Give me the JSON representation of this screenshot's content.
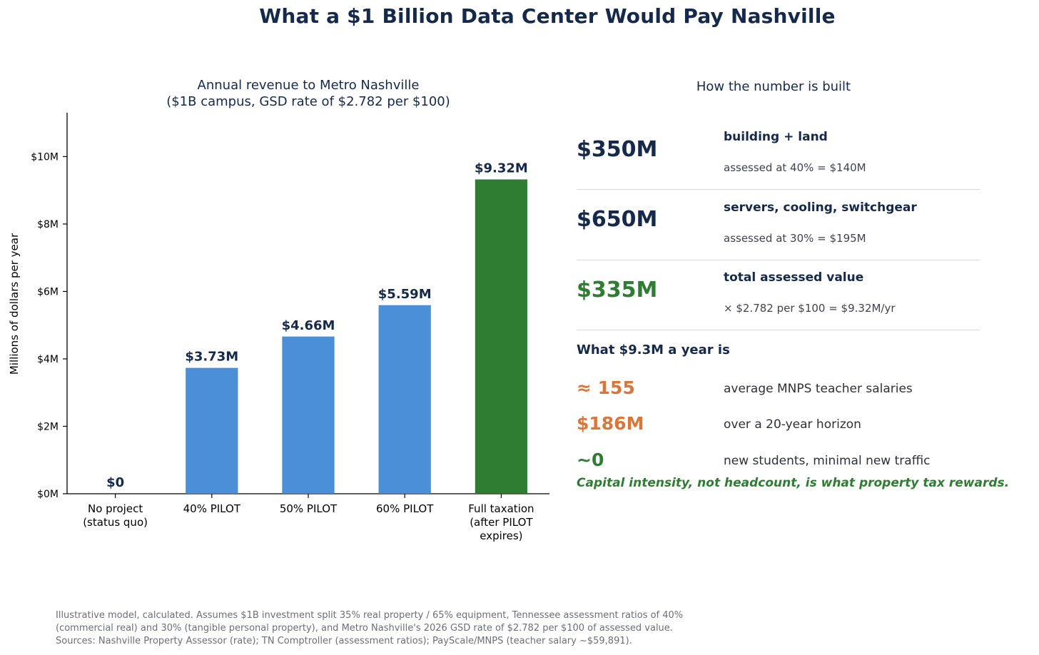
{
  "title": "What a $1 Billion Data Center Would Pay Nashville",
  "chart_data": {
    "type": "bar",
    "title_lines": [
      "Annual revenue to Metro Nashville",
      "($1B campus, GSD rate of $2.782 per $100)"
    ],
    "ylabel": "Millions of dollars per year",
    "xlabel": "",
    "categories": [
      [
        "No project",
        "(status quo)"
      ],
      [
        "40% PILOT"
      ],
      [
        "50% PILOT"
      ],
      [
        "60% PILOT"
      ],
      [
        "Full taxation",
        "(after PILOT",
        "expires)"
      ]
    ],
    "values": [
      0,
      3.73,
      4.66,
      5.59,
      9.32
    ],
    "value_labels": [
      "$0",
      "$3.73M",
      "$4.66M",
      "$5.59M",
      "$9.32M"
    ],
    "bar_colors": [
      "#4a8fd8",
      "#4a8fd8",
      "#4a8fd8",
      "#4a8fd8",
      "#2e7d32"
    ],
    "yticks": [
      0,
      2,
      4,
      6,
      8,
      10
    ],
    "ytick_labels": [
      "$0M",
      "$2M",
      "$4M",
      "$6M",
      "$8M",
      "$10M"
    ],
    "ylim": [
      0,
      11.3
    ],
    "grid": false
  },
  "panel": {
    "title": "How the number is built",
    "rows": [
      {
        "amount": "$350M",
        "title": "building + land",
        "detail": "assessed at 40% = $140M",
        "color": "#15294a"
      },
      {
        "amount": "$650M",
        "title": "servers, cooling, switchgear",
        "detail": "assessed at 30% = $195M",
        "color": "#15294a"
      },
      {
        "amount": "$335M",
        "title": "total assessed value",
        "detail": "× $2.782 per $100 = $9.32M/yr",
        "color": "#2e7d32"
      }
    ],
    "section_heading": "What $9.3M a year is",
    "stats": [
      {
        "value": "≈ 155",
        "desc": "average MNPS teacher salaries",
        "color": "#d9773a"
      },
      {
        "value": "$186M",
        "desc": "over a 20-year horizon",
        "color": "#d9773a"
      },
      {
        "value": "~0",
        "desc": "new students, minimal new traffic",
        "color": "#2e7d32"
      }
    ],
    "tagline": "Capital intensity, not headcount, is what property tax rewards.",
    "tagline_color": "#2e7d32"
  },
  "footnote": [
    "Illustrative model, calculated. Assumes $1B investment split 35% real property / 65% equipment, Tennessee assessment ratios of 40%",
    "(commercial real) and 30% (tangible personal property), and Metro Nashville's 2026 GSD rate of $2.782 per $100 of assessed value.",
    "Sources: Nashville Property Assessor (rate); TN Comptroller (assessment ratios); PayScale/MNPS (teacher salary ~$59,891)."
  ]
}
